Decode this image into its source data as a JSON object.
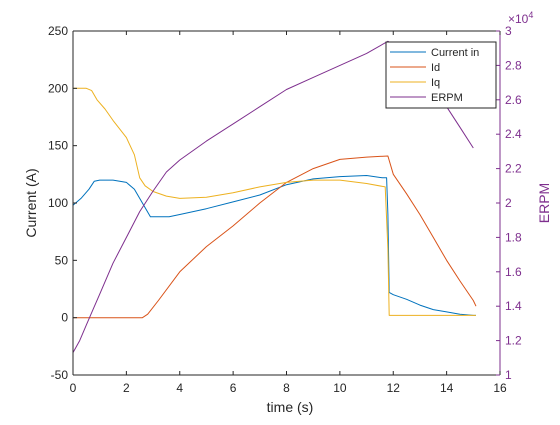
{
  "chart_data": {
    "type": "line",
    "xlabel": "time (s)",
    "ylabel_left": "Current (A)",
    "ylabel_right": "ERPM",
    "xlim": [
      0,
      16
    ],
    "ylim_left": [
      -50,
      250
    ],
    "ylim_right": [
      10000,
      30000
    ],
    "x_ticks": [
      0,
      2,
      4,
      6,
      8,
      10,
      12,
      14,
      16
    ],
    "x_tick_labels": [
      "0",
      "2",
      "4",
      "6",
      "8",
      "10",
      "12",
      "14",
      "16"
    ],
    "y_left_ticks": [
      -50,
      0,
      50,
      100,
      150,
      200,
      250
    ],
    "y_left_tick_labels": [
      "-50",
      "0",
      "50",
      "100",
      "150",
      "200",
      "250"
    ],
    "y_right_ticks": [
      10000,
      12000,
      14000,
      16000,
      18000,
      20000,
      22000,
      24000,
      26000,
      28000,
      30000
    ],
    "y_right_tick_labels": [
      "1",
      "1.2",
      "1.4",
      "1.6",
      "1.8",
      "2",
      "2.2",
      "2.4",
      "2.6",
      "2.8",
      "3"
    ],
    "y_right_exponent": "×10",
    "y_right_exponent_power": "4",
    "grid": false,
    "legend_position": "top-right",
    "colors": {
      "current_in": "#0072BD",
      "id": "#D95319",
      "iq": "#EDB120",
      "erpm": "#7E2F8E",
      "right_axis": "#7E2F8E",
      "axis": "#262626"
    },
    "series": [
      {
        "name": "Current in",
        "axis": "left",
        "color": "#0072BD",
        "x": [
          0,
          0.3,
          0.6,
          0.8,
          1.0,
          1.5,
          2.0,
          2.3,
          2.6,
          2.9,
          3.2,
          3.6,
          4.0,
          5.0,
          6.0,
          7.0,
          8.0,
          9.0,
          10.0,
          11.0,
          11.6,
          11.75,
          11.8,
          11.85,
          12.0,
          12.5,
          13.0,
          13.5,
          14.0,
          14.5,
          15.0,
          15.1
        ],
        "y": [
          98,
          104,
          112,
          119,
          120,
          120,
          118,
          112,
          100,
          88,
          88,
          88,
          90,
          95,
          101,
          107,
          116,
          121,
          123,
          124,
          122,
          122,
          90,
          22,
          20,
          16,
          11,
          7,
          5,
          3,
          2,
          2
        ]
      },
      {
        "name": "Id",
        "axis": "left",
        "color": "#D95319",
        "x": [
          0,
          1.0,
          2.0,
          2.6,
          2.8,
          3.2,
          4.0,
          5.0,
          6.0,
          7.0,
          8.0,
          9.0,
          10.0,
          11.0,
          11.8,
          12.0,
          12.5,
          13.0,
          13.5,
          14.0,
          14.5,
          15.0,
          15.1
        ],
        "y": [
          0,
          0,
          0,
          0,
          3,
          15,
          40,
          62,
          80,
          100,
          118,
          130,
          138,
          140,
          141,
          125,
          108,
          90,
          70,
          50,
          32,
          15,
          10
        ]
      },
      {
        "name": "Iq",
        "axis": "left",
        "color": "#EDB120",
        "x": [
          0,
          0.5,
          0.7,
          0.9,
          1.2,
          1.5,
          2.0,
          2.3,
          2.5,
          2.7,
          3.0,
          3.5,
          4.0,
          5.0,
          6.0,
          7.0,
          8.0,
          9.0,
          10.0,
          11.0,
          11.7,
          11.8,
          11.85,
          12.0,
          13.0,
          14.0,
          15.0,
          15.1
        ],
        "y": [
          200,
          200,
          198,
          190,
          182,
          172,
          157,
          142,
          122,
          115,
          110,
          106,
          104,
          105,
          109,
          114,
          118,
          120,
          120,
          117,
          114,
          60,
          2,
          2,
          2,
          2,
          2,
          2
        ]
      },
      {
        "name": "ERPM",
        "axis": "right",
        "color": "#7E2F8E",
        "x": [
          0,
          0.25,
          0.5,
          0.75,
          1.0,
          1.5,
          2.0,
          2.5,
          3.0,
          3.5,
          4.0,
          5.0,
          6.0,
          7.0,
          8.0,
          9.0,
          10.0,
          11.0,
          11.8,
          12.0,
          12.5,
          13.0,
          13.5,
          14.0,
          14.5,
          15.0
        ],
        "y": [
          11300,
          12000,
          12900,
          13800,
          14700,
          16500,
          18000,
          19500,
          20700,
          21800,
          22500,
          23600,
          24600,
          25600,
          26600,
          27300,
          28000,
          28700,
          29400,
          29200,
          28700,
          27900,
          26800,
          25600,
          24400,
          23200
        ]
      }
    ]
  }
}
